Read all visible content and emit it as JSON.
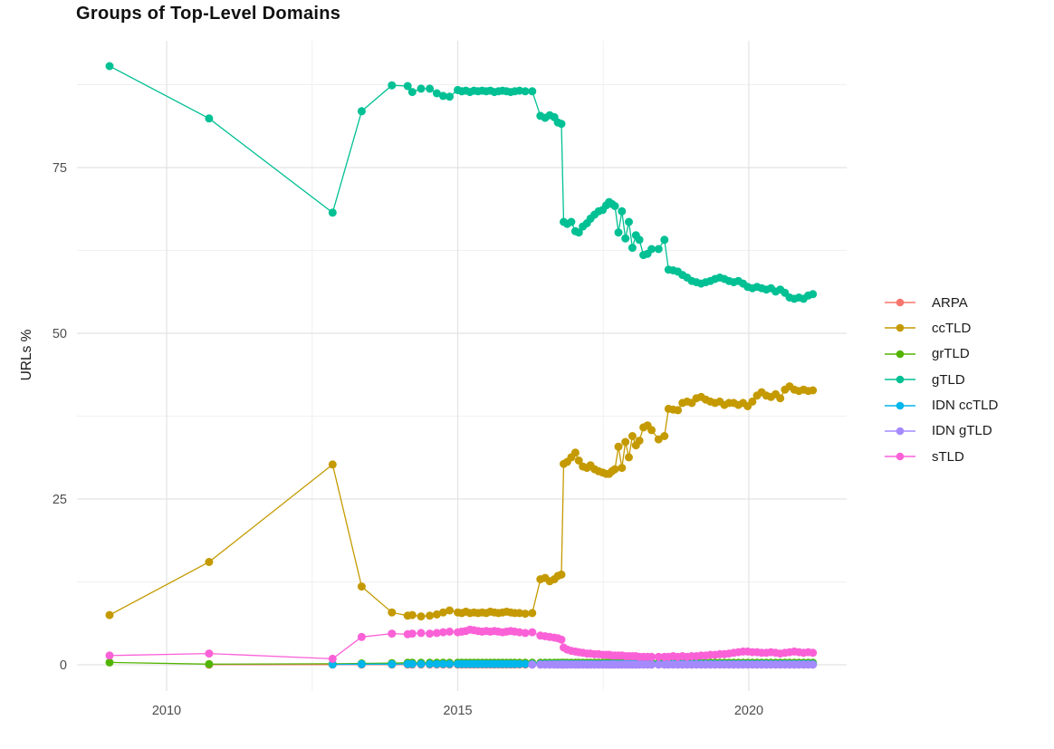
{
  "chart_data": {
    "type": "line",
    "title": "Groups of Top-Level Domains",
    "xlabel": "",
    "ylabel": "URLs %",
    "x_ticks": [
      2010,
      2015,
      2020
    ],
    "x_tick_labels": [
      "2010",
      "2015",
      "2020"
    ],
    "x_minor_ticks": [
      2012.5,
      2017.5
    ],
    "y_ticks": [
      0,
      25,
      50,
      75
    ],
    "y_tick_labels": [
      "0",
      "25",
      "50",
      "75"
    ],
    "y_minor_ticks": [
      12.5,
      37.5,
      62.5,
      87.5
    ],
    "x_range": [
      2008.5,
      2021.7
    ],
    "y_range": [
      -4,
      94
    ],
    "grid": true,
    "legend_position": "right",
    "grid_major_color": "#e3e3e3",
    "grid_minor_color": "#f0f0f0",
    "tick_text_color": "#4d4d4d",
    "dense_t": [
      2014.14,
      2014.22,
      2014.37,
      2014.52,
      2014.64,
      2014.75,
      2014.86,
      2015.0,
      2015.07,
      2015.14,
      2015.21,
      2015.28,
      2015.35,
      2015.42,
      2015.49,
      2015.56,
      2015.63,
      2015.7,
      2015.77,
      2015.84,
      2015.91,
      2015.98,
      2016.06,
      2016.16,
      2016.28,
      2016.42,
      2016.5,
      2016.58,
      2016.66,
      2016.72,
      2016.78,
      2016.82,
      2016.88,
      2016.95,
      2017.02,
      2017.08,
      2017.15,
      2017.22,
      2017.28,
      2017.35,
      2017.42,
      2017.49,
      2017.55,
      2017.6,
      2017.65,
      2017.7,
      2017.76,
      2017.82,
      2017.88,
      2017.94,
      2018.0,
      2018.06,
      2018.12,
      2018.19,
      2018.26,
      2018.33,
      2018.45,
      2018.55,
      2018.62,
      2018.7,
      2018.78,
      2018.86,
      2018.94,
      2019.02,
      2019.1,
      2019.18,
      2019.26,
      2019.34,
      2019.42,
      2019.5,
      2019.58,
      2019.66,
      2019.74,
      2019.82,
      2019.9,
      2019.98,
      2020.06,
      2020.14,
      2020.22,
      2020.3,
      2020.38,
      2020.46,
      2020.54,
      2020.62,
      2020.7,
      2020.78,
      2020.86,
      2020.94,
      2021.02,
      2021.1
    ],
    "series": [
      {
        "name": "ARPA",
        "color": "#F8766D",
        "sparse": [
          [
            2010.73,
            0.02
          ],
          [
            2012.85,
            0.03
          ],
          [
            2013.35,
            0.03
          ],
          [
            2013.87,
            0.03
          ]
        ],
        "dense_const": 0.03
      },
      {
        "name": "ccTLD",
        "color": "#C49A00",
        "sparse": [
          [
            2009.02,
            7.5
          ],
          [
            2010.73,
            15.5
          ],
          [
            2012.85,
            30.2
          ],
          [
            2013.35,
            11.8
          ],
          [
            2013.87,
            7.9
          ]
        ],
        "dense_v": [
          7.4,
          7.5,
          7.3,
          7.4,
          7.6,
          7.9,
          8.2,
          7.9,
          7.8,
          8.0,
          7.8,
          7.9,
          7.8,
          7.9,
          7.8,
          8.0,
          7.9,
          7.8,
          7.9,
          8.0,
          7.9,
          7.8,
          7.8,
          7.7,
          7.8,
          12.9,
          13.1,
          12.6,
          12.9,
          13.4,
          13.6,
          30.3,
          30.6,
          31.3,
          32.0,
          30.8,
          29.9,
          29.7,
          30.1,
          29.5,
          29.2,
          29.0,
          28.8,
          28.8,
          29.2,
          29.5,
          32.9,
          29.7,
          33.6,
          31.3,
          34.5,
          33.1,
          33.8,
          35.8,
          36.1,
          35.4,
          34.0,
          34.5,
          38.6,
          38.5,
          38.4,
          39.5,
          39.7,
          39.5,
          40.2,
          40.4,
          40.0,
          39.7,
          39.5,
          39.7,
          39.2,
          39.5,
          39.5,
          39.2,
          39.5,
          39.0,
          39.7,
          40.6,
          41.1,
          40.6,
          40.4,
          40.8,
          40.2,
          41.5,
          42.0,
          41.5,
          41.3,
          41.5,
          41.3,
          41.4
        ]
      },
      {
        "name": "grTLD",
        "color": "#53B400",
        "sparse": [
          [
            2009.02,
            0.35
          ],
          [
            2010.73,
            0.1
          ],
          [
            2012.85,
            0.15
          ],
          [
            2013.35,
            0.2
          ],
          [
            2013.87,
            0.25
          ]
        ],
        "dense_const": 0.3
      },
      {
        "name": "gTLD",
        "color": "#00C094",
        "sparse": [
          [
            2009.02,
            90.3
          ],
          [
            2010.73,
            82.4
          ],
          [
            2012.85,
            68.2
          ],
          [
            2013.35,
            83.5
          ],
          [
            2013.87,
            87.4
          ]
        ],
        "dense_v": [
          87.3,
          86.4,
          86.9,
          86.9,
          86.2,
          85.8,
          85.7,
          86.7,
          86.5,
          86.6,
          86.4,
          86.6,
          86.5,
          86.6,
          86.5,
          86.6,
          86.4,
          86.5,
          86.6,
          86.5,
          86.4,
          86.5,
          86.6,
          86.5,
          86.5,
          82.8,
          82.5,
          82.9,
          82.6,
          81.8,
          81.6,
          66.8,
          66.5,
          66.8,
          65.4,
          65.2,
          66.1,
          66.6,
          67.3,
          67.9,
          68.4,
          68.6,
          69.3,
          69.8,
          69.5,
          69.2,
          65.2,
          68.4,
          64.3,
          66.8,
          62.9,
          64.8,
          64.1,
          61.8,
          62.0,
          62.7,
          62.7,
          64.1,
          59.6,
          59.5,
          59.3,
          58.8,
          58.4,
          57.9,
          57.7,
          57.5,
          57.7,
          57.9,
          58.2,
          58.4,
          58.2,
          57.9,
          57.7,
          57.9,
          57.5,
          57.0,
          56.8,
          57.0,
          56.8,
          56.6,
          56.8,
          56.3,
          56.6,
          56.1,
          55.4,
          55.2,
          55.4,
          55.2,
          55.7,
          55.9
        ]
      },
      {
        "name": "IDN ccTLD",
        "color": "#00B6EB",
        "sparse": [
          [
            2012.85,
            0.05
          ],
          [
            2013.35,
            0.1
          ],
          [
            2013.87,
            0.1
          ]
        ],
        "dense_const": 0.12
      },
      {
        "name": "IDN gTLD",
        "color": "#A58AFF",
        "sparse": [],
        "dense_const": 0.03,
        "dense_from": 2016.2
      },
      {
        "name": "sTLD",
        "color": "#FB61D7",
        "sparse": [
          [
            2009.02,
            1.4
          ],
          [
            2010.73,
            1.7
          ],
          [
            2012.85,
            0.9
          ],
          [
            2013.35,
            4.2
          ],
          [
            2013.87,
            4.7
          ]
        ],
        "dense_v": [
          4.6,
          4.7,
          4.8,
          4.7,
          4.8,
          4.9,
          5.0,
          4.9,
          5.0,
          5.1,
          5.3,
          5.2,
          5.1,
          5.0,
          5.1,
          5.0,
          5.1,
          5.0,
          4.9,
          5.0,
          5.1,
          5.0,
          4.9,
          4.8,
          4.9,
          4.4,
          4.3,
          4.2,
          4.1,
          4.0,
          3.8,
          2.6,
          2.3,
          2.1,
          2.0,
          1.9,
          1.8,
          1.7,
          1.7,
          1.6,
          1.6,
          1.5,
          1.5,
          1.5,
          1.4,
          1.4,
          1.4,
          1.4,
          1.3,
          1.3,
          1.3,
          1.3,
          1.2,
          1.2,
          1.2,
          1.2,
          1.2,
          1.2,
          1.2,
          1.3,
          1.2,
          1.3,
          1.2,
          1.3,
          1.3,
          1.4,
          1.4,
          1.5,
          1.5,
          1.6,
          1.6,
          1.7,
          1.8,
          1.9,
          2.0,
          2.0,
          1.9,
          1.9,
          1.8,
          1.8,
          1.9,
          1.8,
          1.7,
          1.8,
          1.9,
          2.0,
          1.9,
          1.8,
          1.9,
          1.8
        ]
      }
    ]
  }
}
